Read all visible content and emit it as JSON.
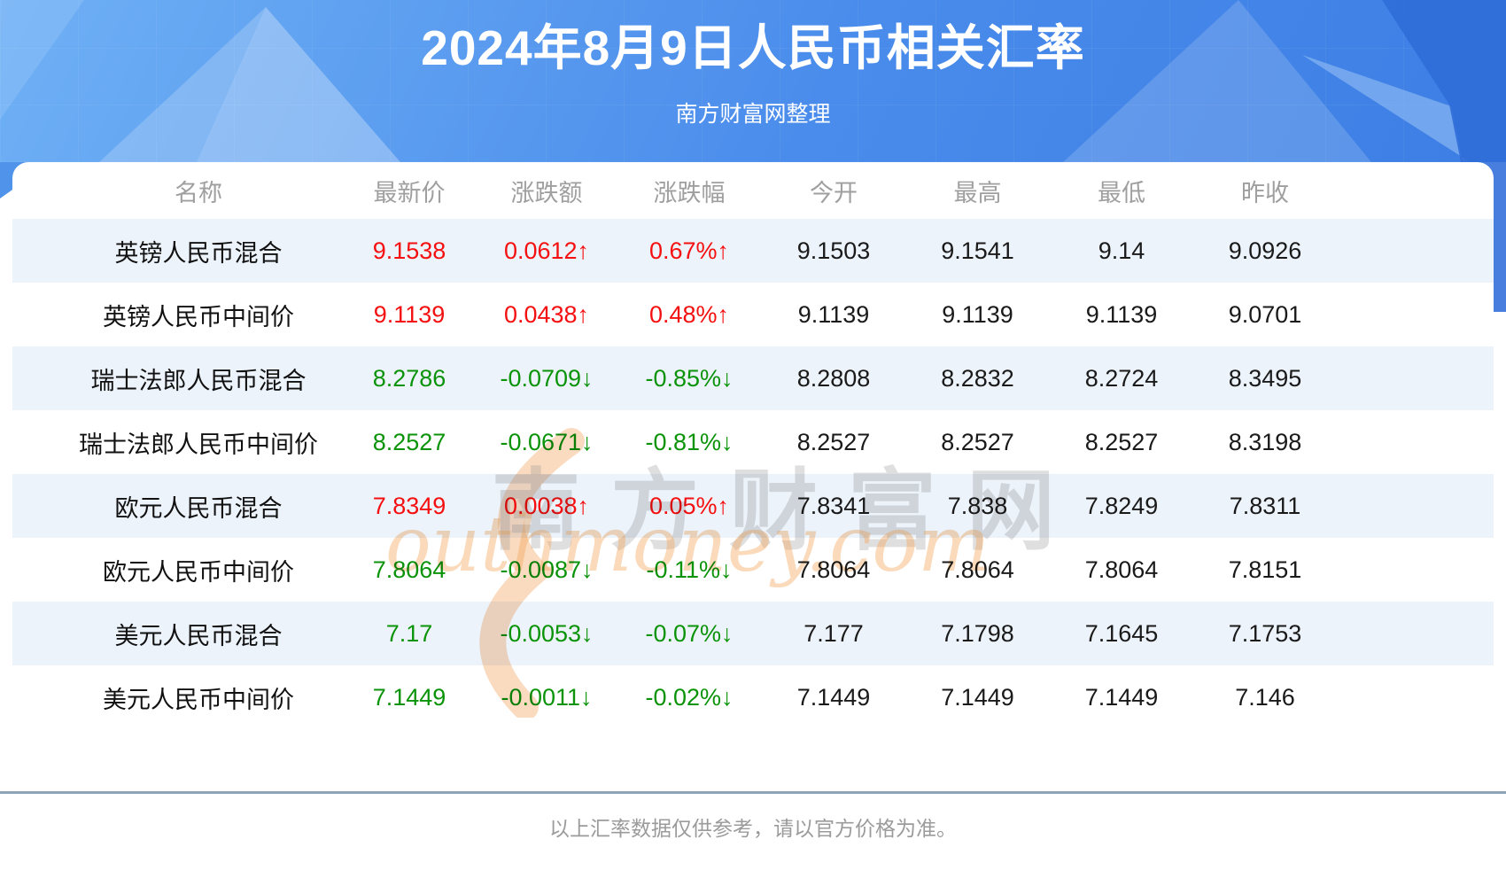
{
  "header": {
    "title": "2024年8月9日人民币相关汇率",
    "subtitle": "南方财富网整理"
  },
  "colors": {
    "up": "#f41010",
    "down": "#0b9309",
    "stripe": "#edf3fb",
    "hero_from": "#6fb0f5",
    "hero_to": "#3c7ee4",
    "divider": "#8ca3b8"
  },
  "watermark": {
    "cn": "南方财富网",
    "en": "outhmoney.com"
  },
  "chart_data": {
    "type": "table",
    "title": "2024年8月9日人民币相关汇率",
    "subtitle": "南方财富网整理",
    "columns": [
      "名称",
      "最新价",
      "涨跌额",
      "涨跌幅",
      "今开",
      "最高",
      "最低",
      "昨收"
    ],
    "rows": [
      [
        "英镑人民币混合",
        "9.1538",
        "0.0612↑",
        "0.67%↑",
        "9.1503",
        "9.1541",
        "9.14",
        "9.0926"
      ],
      [
        "英镑人民币中间价",
        "9.1139",
        "0.0438↑",
        "0.48%↑",
        "9.1139",
        "9.1139",
        "9.1139",
        "9.0701"
      ],
      [
        "瑞士法郎人民币混合",
        "8.2786",
        "-0.0709↓",
        "-0.85%↓",
        "8.2808",
        "8.2832",
        "8.2724",
        "8.3495"
      ],
      [
        "瑞士法郎人民币中间价",
        "8.2527",
        "-0.0671↓",
        "-0.81%↓",
        "8.2527",
        "8.2527",
        "8.2527",
        "8.3198"
      ],
      [
        "欧元人民币混合",
        "7.8349",
        "0.0038↑",
        "0.05%↑",
        "7.8341",
        "7.838",
        "7.8249",
        "7.8311"
      ],
      [
        "欧元人民币中间价",
        "7.8064",
        "-0.0087↓",
        "-0.11%↓",
        "7.8064",
        "7.8064",
        "7.8064",
        "7.8151"
      ],
      [
        "美元人民币混合",
        "7.17",
        "-0.0053↓",
        "-0.07%↓",
        "7.177",
        "7.1798",
        "7.1645",
        "7.1753"
      ],
      [
        "美元人民币中间价",
        "7.1449",
        "-0.0011↓",
        "-0.02%↓",
        "7.1449",
        "7.1449",
        "7.1449",
        "7.146"
      ]
    ]
  },
  "footer": {
    "note": "以上汇率数据仅供参考，请以官方价格为准。"
  }
}
